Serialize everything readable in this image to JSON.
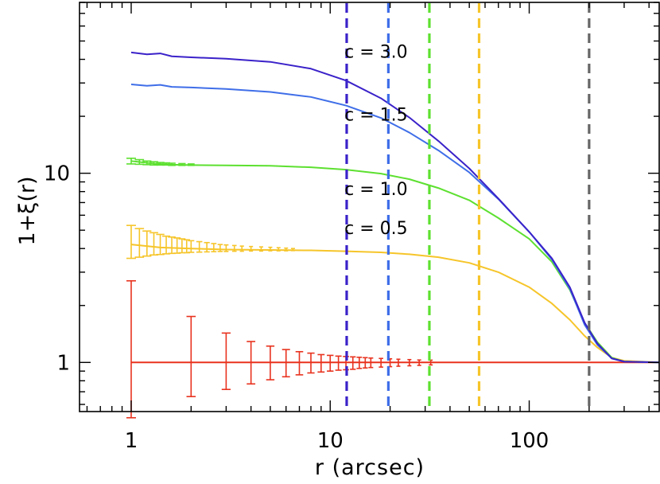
{
  "chart_data": {
    "type": "line",
    "xscale": "log",
    "yscale": "log",
    "xlim": [
      0.55,
      450
    ],
    "ylim": [
      0.55,
      80
    ],
    "xlabel": "r (arcsec)",
    "ylabel": "1+ξ(r)",
    "x_ticks": [
      {
        "value": 1,
        "label": "1"
      },
      {
        "value": 10,
        "label": "10"
      },
      {
        "value": 100,
        "label": "100"
      }
    ],
    "y_ticks": [
      {
        "value": 1,
        "label": "1"
      },
      {
        "value": 10,
        "label": "10"
      }
    ],
    "series": [
      {
        "name": "c = 3.0",
        "label": "c = 3.0",
        "color": "#3a22c9",
        "label_pos": [
          17,
          44
        ],
        "points": [
          [
            1.0,
            43.5
          ],
          [
            1.2,
            42.5
          ],
          [
            1.4,
            43
          ],
          [
            1.6,
            41.5
          ],
          [
            2,
            41
          ],
          [
            3,
            40.3
          ],
          [
            5,
            38.8
          ],
          [
            8,
            35.7
          ],
          [
            12,
            30.9
          ],
          [
            18,
            24.9
          ],
          [
            25,
            19.7
          ],
          [
            35,
            14.8
          ],
          [
            50,
            10.6
          ],
          [
            70,
            7.35
          ],
          [
            100,
            4.9
          ],
          [
            130,
            3.55
          ],
          [
            160,
            2.5
          ],
          [
            190,
            1.62
          ],
          [
            220,
            1.26
          ],
          [
            260,
            1.05
          ],
          [
            300,
            1.01
          ],
          [
            450,
            1.0
          ]
        ]
      },
      {
        "name": "c = 1.5",
        "label": "c = 1.5",
        "color": "#3f6ee8",
        "label_pos": [
          17,
          20.5
        ],
        "points": [
          [
            1.0,
            29.5
          ],
          [
            1.2,
            29
          ],
          [
            1.4,
            29.3
          ],
          [
            1.6,
            28.6
          ],
          [
            2,
            28.4
          ],
          [
            3,
            27.9
          ],
          [
            5,
            26.9
          ],
          [
            8,
            25.3
          ],
          [
            12,
            22.8
          ],
          [
            18,
            19.6
          ],
          [
            25,
            16.4
          ],
          [
            35,
            13.2
          ],
          [
            50,
            10.1
          ],
          [
            70,
            7.3
          ],
          [
            100,
            4.9
          ],
          [
            130,
            3.5
          ],
          [
            160,
            2.45
          ],
          [
            190,
            1.58
          ],
          [
            220,
            1.24
          ],
          [
            260,
            1.05
          ],
          [
            300,
            1.01
          ],
          [
            450,
            1.0
          ]
        ]
      },
      {
        "name": "c = 1.0",
        "label": "c = 1.0",
        "color": "#5de030",
        "label_pos": [
          17,
          8.3
        ],
        "points": [
          [
            1.0,
            11.6
          ],
          [
            1.3,
            11.25
          ],
          [
            1.6,
            11.1
          ],
          [
            2,
            11.05
          ],
          [
            3,
            11.0
          ],
          [
            5,
            10.95
          ],
          [
            8,
            10.75
          ],
          [
            12,
            10.45
          ],
          [
            18,
            9.95
          ],
          [
            25,
            9.3
          ],
          [
            35,
            8.35
          ],
          [
            50,
            7.2
          ],
          [
            70,
            5.8
          ],
          [
            100,
            4.5
          ],
          [
            130,
            3.4
          ],
          [
            160,
            2.42
          ],
          [
            190,
            1.62
          ],
          [
            220,
            1.28
          ],
          [
            260,
            1.06
          ],
          [
            300,
            1.01
          ],
          [
            450,
            1.0
          ]
        ]
      },
      {
        "name": "c = 0.5",
        "label": "c = 0.5",
        "color": "#f6c52a",
        "label_pos": [
          17,
          5.15
        ],
        "points": [
          [
            1.0,
            4.2
          ],
          [
            1.4,
            4.05
          ],
          [
            2,
            4.0
          ],
          [
            3,
            3.95
          ],
          [
            5,
            3.93
          ],
          [
            8,
            3.91
          ],
          [
            12,
            3.87
          ],
          [
            18,
            3.82
          ],
          [
            25,
            3.73
          ],
          [
            35,
            3.6
          ],
          [
            50,
            3.36
          ],
          [
            70,
            3.0
          ],
          [
            100,
            2.5
          ],
          [
            130,
            2.05
          ],
          [
            160,
            1.68
          ],
          [
            190,
            1.38
          ],
          [
            220,
            1.2
          ],
          [
            260,
            1.06
          ],
          [
            300,
            1.02
          ],
          [
            450,
            1.0
          ]
        ]
      },
      {
        "name": "random",
        "label": "",
        "color": "#e8321e",
        "points": [
          [
            1.0,
            1.0
          ],
          [
            450,
            1.0
          ]
        ]
      }
    ],
    "error_bars": [
      {
        "series": "c = 0.5",
        "color": "#f6c52a",
        "bars": [
          [
            1,
            3.55,
            5.3
          ],
          [
            1.1,
            3.6,
            5.1
          ],
          [
            1.2,
            3.65,
            4.95
          ],
          [
            1.3,
            3.7,
            4.85
          ],
          [
            1.4,
            3.72,
            4.75
          ],
          [
            1.5,
            3.75,
            4.65
          ],
          [
            1.6,
            3.77,
            4.6
          ],
          [
            1.7,
            3.78,
            4.55
          ],
          [
            1.8,
            3.8,
            4.5
          ],
          [
            1.9,
            3.8,
            4.45
          ],
          [
            2,
            3.82,
            4.4
          ],
          [
            2.2,
            3.83,
            4.35
          ],
          [
            2.4,
            3.84,
            4.3
          ],
          [
            2.6,
            3.85,
            4.25
          ],
          [
            2.8,
            3.86,
            4.2
          ],
          [
            3,
            3.86,
            4.18
          ],
          [
            3.3,
            3.87,
            4.15
          ],
          [
            3.6,
            3.87,
            4.12
          ],
          [
            4,
            3.88,
            4.1
          ],
          [
            4.5,
            3.88,
            4.08
          ],
          [
            5,
            3.89,
            4.06
          ],
          [
            5.5,
            3.89,
            4.04
          ],
          [
            6,
            3.89,
            4.02
          ],
          [
            6.5,
            3.9,
            4.0
          ]
        ]
      },
      {
        "series": "c = 1.0",
        "color": "#5de030",
        "bars": [
          [
            1,
            11.2,
            12.0
          ],
          [
            1.1,
            11.15,
            11.8
          ],
          [
            1.2,
            11.1,
            11.6
          ],
          [
            1.3,
            11.05,
            11.5
          ],
          [
            1.4,
            11.05,
            11.4
          ],
          [
            1.5,
            11.05,
            11.35
          ],
          [
            1.6,
            11.0,
            11.3
          ],
          [
            1.8,
            11.0,
            11.25
          ],
          [
            2,
            11.0,
            11.2
          ]
        ]
      },
      {
        "series": "random",
        "color": "#e8321e",
        "bars": [
          [
            1,
            0.51,
            2.7
          ],
          [
            2,
            0.66,
            1.75
          ],
          [
            3,
            0.72,
            1.43
          ],
          [
            4,
            0.77,
            1.29
          ],
          [
            5,
            0.81,
            1.22
          ],
          [
            6,
            0.84,
            1.17
          ],
          [
            7,
            0.86,
            1.14
          ],
          [
            8,
            0.88,
            1.12
          ],
          [
            9,
            0.89,
            1.1
          ],
          [
            10,
            0.9,
            1.09
          ],
          [
            11,
            0.91,
            1.08
          ],
          [
            12,
            0.915,
            1.075
          ],
          [
            13,
            0.92,
            1.07
          ],
          [
            14,
            0.93,
            1.065
          ],
          [
            15,
            0.935,
            1.06
          ],
          [
            16,
            0.94,
            1.055
          ],
          [
            18,
            0.945,
            1.05
          ],
          [
            20,
            0.95,
            1.045
          ],
          [
            22,
            0.955,
            1.04
          ],
          [
            25,
            0.96,
            1.035
          ],
          [
            28,
            0.965,
            1.03
          ],
          [
            32,
            0.97,
            1.028
          ]
        ]
      }
    ],
    "vlines": [
      {
        "name": "vline-c3",
        "x": 12.1,
        "color": "#3a22c9"
      },
      {
        "name": "vline-c15",
        "x": 19.6,
        "color": "#3f6ee8"
      },
      {
        "name": "vline-c1",
        "x": 31.5,
        "color": "#5de030"
      },
      {
        "name": "vline-c05",
        "x": 56,
        "color": "#f6c52a"
      },
      {
        "name": "vline-grey",
        "x": 200,
        "color": "#666666"
      }
    ]
  }
}
